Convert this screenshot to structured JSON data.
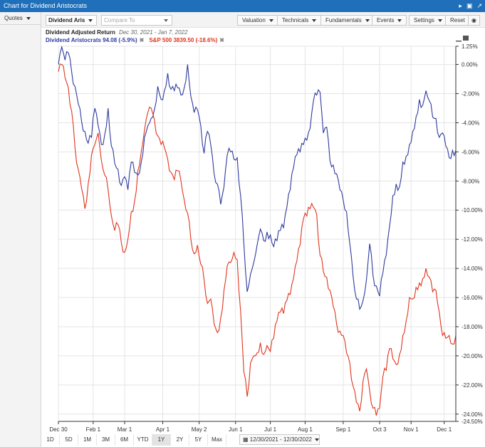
{
  "window": {
    "title": "Chart for Dividend Aristocrats"
  },
  "sidebar": {
    "quotes_label": "Quotes"
  },
  "toolbar": {
    "symbol_value": "Dividend Aris",
    "compare_placeholder": "Compare To",
    "buttons": [
      "Valuation",
      "Technicals",
      "Fundamentals",
      "Events",
      "Settings"
    ],
    "reset_label": "Reset"
  },
  "header": {
    "title": "Dividend Adjusted Return",
    "date_range": "Dec 30, 2021 - Jan 7, 2022",
    "series": [
      {
        "label": "Dividend Aristocrats 94.08 (-5.9%)",
        "color": "#2e3a9e"
      },
      {
        "label": "S&P 500 3839.50 (-18.6%)",
        "color": "#e0341c"
      }
    ]
  },
  "range": {
    "buttons": [
      "1D",
      "5D",
      "1M",
      "3M",
      "6M",
      "YTD",
      "1Y",
      "2Y",
      "5Y",
      "Max"
    ],
    "active": "1Y",
    "date_range_value": "12/30/2021 - 12/30/2022"
  },
  "chart_data": {
    "type": "line",
    "x_tick_labels": [
      "Dec 30",
      "Feb 1",
      "Mar 1",
      "Apr 1",
      "May 2",
      "Jun 1",
      "Jul 1",
      "Aug 1",
      "Sep 1",
      "Oct 3",
      "Nov 1",
      "Dec 1"
    ],
    "x_ticks_index": [
      0,
      21,
      40,
      63,
      85,
      107,
      128,
      149,
      172,
      194,
      213,
      233
    ],
    "y_tick_labels": [
      "1.25%",
      "0.00%",
      "-2.00%",
      "-4.00%",
      "-6.00%",
      "-8.00%",
      "-10.00%",
      "-12.00%",
      "-14.00%",
      "-16.00%",
      "-18.00%",
      "-20.00%",
      "-22.00%",
      "-24.00%",
      "-24.50%"
    ],
    "y_ticks_values": [
      1.25,
      0,
      -2,
      -4,
      -6,
      -8,
      -10,
      -12,
      -14,
      -16,
      -18,
      -20,
      -22,
      -24,
      -24.5
    ],
    "ylim": [
      -24.5,
      1.25
    ],
    "y_axis_side": "right",
    "grid": true,
    "series": [
      {
        "name": "Dividend Aristocrats",
        "color": "#2e3a9e",
        "anchors": [
          [
            0,
            0.0
          ],
          [
            2,
            1.2
          ],
          [
            4,
            0.3
          ],
          [
            6,
            0.8
          ],
          [
            8,
            -0.5
          ],
          [
            10,
            -1.5
          ],
          [
            12,
            -2.7
          ],
          [
            14,
            -3.9
          ],
          [
            16,
            -4.6
          ],
          [
            18,
            -5.4
          ],
          [
            20,
            -5.0
          ],
          [
            22,
            -3.0
          ],
          [
            24,
            -4.2
          ],
          [
            26,
            -5.5
          ],
          [
            28,
            -4.8
          ],
          [
            30,
            -3.0
          ],
          [
            32,
            -5.6
          ],
          [
            34,
            -6.8
          ],
          [
            36,
            -7.2
          ],
          [
            38,
            -8.3
          ],
          [
            40,
            -7.7
          ],
          [
            42,
            -8.6
          ],
          [
            44,
            -6.7
          ],
          [
            46,
            -7.4
          ],
          [
            48,
            -7.6
          ],
          [
            50,
            -6.7
          ],
          [
            52,
            -5.0
          ],
          [
            54,
            -4.2
          ],
          [
            56,
            -3.7
          ],
          [
            58,
            -3.1
          ],
          [
            60,
            -1.5
          ],
          [
            62,
            -2.4
          ],
          [
            64,
            -1.8
          ],
          [
            66,
            -0.6
          ],
          [
            68,
            -1.7
          ],
          [
            70,
            -1.8
          ],
          [
            72,
            -1.6
          ],
          [
            74,
            -2.1
          ],
          [
            76,
            -1.6
          ],
          [
            78,
            0.0
          ],
          [
            80,
            -2.2
          ],
          [
            82,
            -3.3
          ],
          [
            84,
            -3.1
          ],
          [
            86,
            -4.2
          ],
          [
            88,
            -6.1
          ],
          [
            90,
            -4.6
          ],
          [
            92,
            -5.5
          ],
          [
            94,
            -7.5
          ],
          [
            96,
            -8.2
          ],
          [
            98,
            -9.6
          ],
          [
            100,
            -8.4
          ],
          [
            102,
            -6.2
          ],
          [
            104,
            -6.0
          ],
          [
            106,
            -6.5
          ],
          [
            108,
            -6.4
          ],
          [
            110,
            -9.0
          ],
          [
            112,
            -12.3
          ],
          [
            114,
            -15.6
          ],
          [
            116,
            -14.4
          ],
          [
            118,
            -13.6
          ],
          [
            120,
            -12.4
          ],
          [
            122,
            -11.3
          ],
          [
            124,
            -12.1
          ],
          [
            126,
            -11.5
          ],
          [
            128,
            -11.7
          ],
          [
            130,
            -12.5
          ],
          [
            132,
            -12.1
          ],
          [
            134,
            -11.4
          ],
          [
            136,
            -11.2
          ],
          [
            138,
            -9.8
          ],
          [
            140,
            -8.6
          ],
          [
            142,
            -7.1
          ],
          [
            144,
            -6.2
          ],
          [
            146,
            -6.0
          ],
          [
            148,
            -5.5
          ],
          [
            150,
            -5.2
          ],
          [
            152,
            -4.4
          ],
          [
            154,
            -2.5
          ],
          [
            156,
            -2.1
          ],
          [
            158,
            -1.9
          ],
          [
            160,
            -4.7
          ],
          [
            162,
            -4.3
          ],
          [
            164,
            -6.6
          ],
          [
            166,
            -6.9
          ],
          [
            168,
            -7.5
          ],
          [
            170,
            -8.6
          ],
          [
            172,
            -9.3
          ],
          [
            174,
            -10.1
          ],
          [
            176,
            -12.3
          ],
          [
            178,
            -14.6
          ],
          [
            180,
            -16.1
          ],
          [
            182,
            -16.8
          ],
          [
            184,
            -16.2
          ],
          [
            186,
            -14.8
          ],
          [
            188,
            -12.3
          ],
          [
            190,
            -14.5
          ],
          [
            192,
            -15.2
          ],
          [
            194,
            -15.9
          ],
          [
            196,
            -14.3
          ],
          [
            198,
            -13.1
          ],
          [
            200,
            -11.1
          ],
          [
            202,
            -9.0
          ],
          [
            204,
            -8.2
          ],
          [
            206,
            -8.4
          ],
          [
            208,
            -6.7
          ],
          [
            210,
            -6.3
          ],
          [
            212,
            -5.5
          ],
          [
            214,
            -4.6
          ],
          [
            216,
            -3.6
          ],
          [
            218,
            -2.4
          ],
          [
            220,
            -2.8
          ],
          [
            222,
            -1.8
          ],
          [
            224,
            -2.5
          ],
          [
            226,
            -3.6
          ],
          [
            228,
            -3.7
          ],
          [
            230,
            -5.0
          ],
          [
            232,
            -4.7
          ],
          [
            234,
            -5.6
          ],
          [
            236,
            -6.4
          ],
          [
            238,
            -5.9
          ],
          [
            240,
            -5.9
          ]
        ]
      },
      {
        "name": "S&P 500",
        "color": "#e0341c",
        "anchors": [
          [
            0,
            -0.5
          ],
          [
            2,
            0.0
          ],
          [
            4,
            -0.9
          ],
          [
            6,
            -1.6
          ],
          [
            8,
            -3.2
          ],
          [
            10,
            -5.7
          ],
          [
            12,
            -7.2
          ],
          [
            14,
            -8.5
          ],
          [
            16,
            -9.9
          ],
          [
            18,
            -8.2
          ],
          [
            20,
            -6.2
          ],
          [
            22,
            -5.5
          ],
          [
            24,
            -4.7
          ],
          [
            26,
            -6.6
          ],
          [
            28,
            -7.6
          ],
          [
            30,
            -8.6
          ],
          [
            32,
            -10.4
          ],
          [
            34,
            -11.4
          ],
          [
            36,
            -11.0
          ],
          [
            38,
            -12.2
          ],
          [
            40,
            -12.9
          ],
          [
            42,
            -12.0
          ],
          [
            44,
            -10.1
          ],
          [
            46,
            -9.4
          ],
          [
            48,
            -7.3
          ],
          [
            50,
            -6.0
          ],
          [
            52,
            -4.5
          ],
          [
            54,
            -3.3
          ],
          [
            56,
            -3.0
          ],
          [
            58,
            -3.8
          ],
          [
            60,
            -4.9
          ],
          [
            62,
            -5.5
          ],
          [
            64,
            -5.7
          ],
          [
            66,
            -6.5
          ],
          [
            68,
            -7.4
          ],
          [
            70,
            -7.9
          ],
          [
            72,
            -7.3
          ],
          [
            74,
            -8.0
          ],
          [
            76,
            -9.3
          ],
          [
            78,
            -10.2
          ],
          [
            80,
            -12.0
          ],
          [
            82,
            -13.0
          ],
          [
            84,
            -12.4
          ],
          [
            86,
            -13.7
          ],
          [
            88,
            -14.8
          ],
          [
            90,
            -16.4
          ],
          [
            92,
            -16.1
          ],
          [
            94,
            -17.8
          ],
          [
            96,
            -18.4
          ],
          [
            98,
            -17.4
          ],
          [
            100,
            -15.5
          ],
          [
            102,
            -13.8
          ],
          [
            104,
            -13.6
          ],
          [
            106,
            -12.9
          ],
          [
            108,
            -13.4
          ],
          [
            110,
            -16.9
          ],
          [
            112,
            -21.1
          ],
          [
            114,
            -22.8
          ],
          [
            116,
            -20.5
          ],
          [
            118,
            -20.0
          ],
          [
            120,
            -19.8
          ],
          [
            122,
            -19.1
          ],
          [
            124,
            -19.9
          ],
          [
            126,
            -19.3
          ],
          [
            128,
            -19.7
          ],
          [
            130,
            -18.8
          ],
          [
            132,
            -17.6
          ],
          [
            134,
            -17.0
          ],
          [
            136,
            -17.1
          ],
          [
            138,
            -16.2
          ],
          [
            140,
            -15.8
          ],
          [
            142,
            -14.7
          ],
          [
            144,
            -13.5
          ],
          [
            146,
            -12.4
          ],
          [
            148,
            -10.6
          ],
          [
            150,
            -10.4
          ],
          [
            152,
            -9.9
          ],
          [
            154,
            -9.8
          ],
          [
            156,
            -10.3
          ],
          [
            158,
            -13.1
          ],
          [
            160,
            -14.2
          ],
          [
            162,
            -14.6
          ],
          [
            164,
            -15.5
          ],
          [
            166,
            -16.6
          ],
          [
            168,
            -17.8
          ],
          [
            170,
            -18.3
          ],
          [
            172,
            -18.6
          ],
          [
            174,
            -19.8
          ],
          [
            176,
            -20.5
          ],
          [
            178,
            -22.1
          ],
          [
            180,
            -23.2
          ],
          [
            182,
            -23.8
          ],
          [
            184,
            -21.7
          ],
          [
            186,
            -20.9
          ],
          [
            188,
            -22.4
          ],
          [
            190,
            -23.6
          ],
          [
            192,
            -24.1
          ],
          [
            194,
            -23.6
          ],
          [
            196,
            -21.4
          ],
          [
            198,
            -21.0
          ],
          [
            200,
            -19.5
          ],
          [
            202,
            -20.2
          ],
          [
            204,
            -20.6
          ],
          [
            206,
            -19.9
          ],
          [
            208,
            -18.6
          ],
          [
            210,
            -17.6
          ],
          [
            212,
            -16.0
          ],
          [
            214,
            -16.1
          ],
          [
            216,
            -15.3
          ],
          [
            218,
            -15.0
          ],
          [
            220,
            -14.7
          ],
          [
            222,
            -14.0
          ],
          [
            224,
            -14.6
          ],
          [
            226,
            -15.6
          ],
          [
            228,
            -15.5
          ],
          [
            230,
            -17.0
          ],
          [
            232,
            -18.6
          ],
          [
            234,
            -18.8
          ],
          [
            236,
            -18.6
          ],
          [
            238,
            -19.2
          ],
          [
            240,
            -18.6
          ]
        ]
      }
    ]
  }
}
